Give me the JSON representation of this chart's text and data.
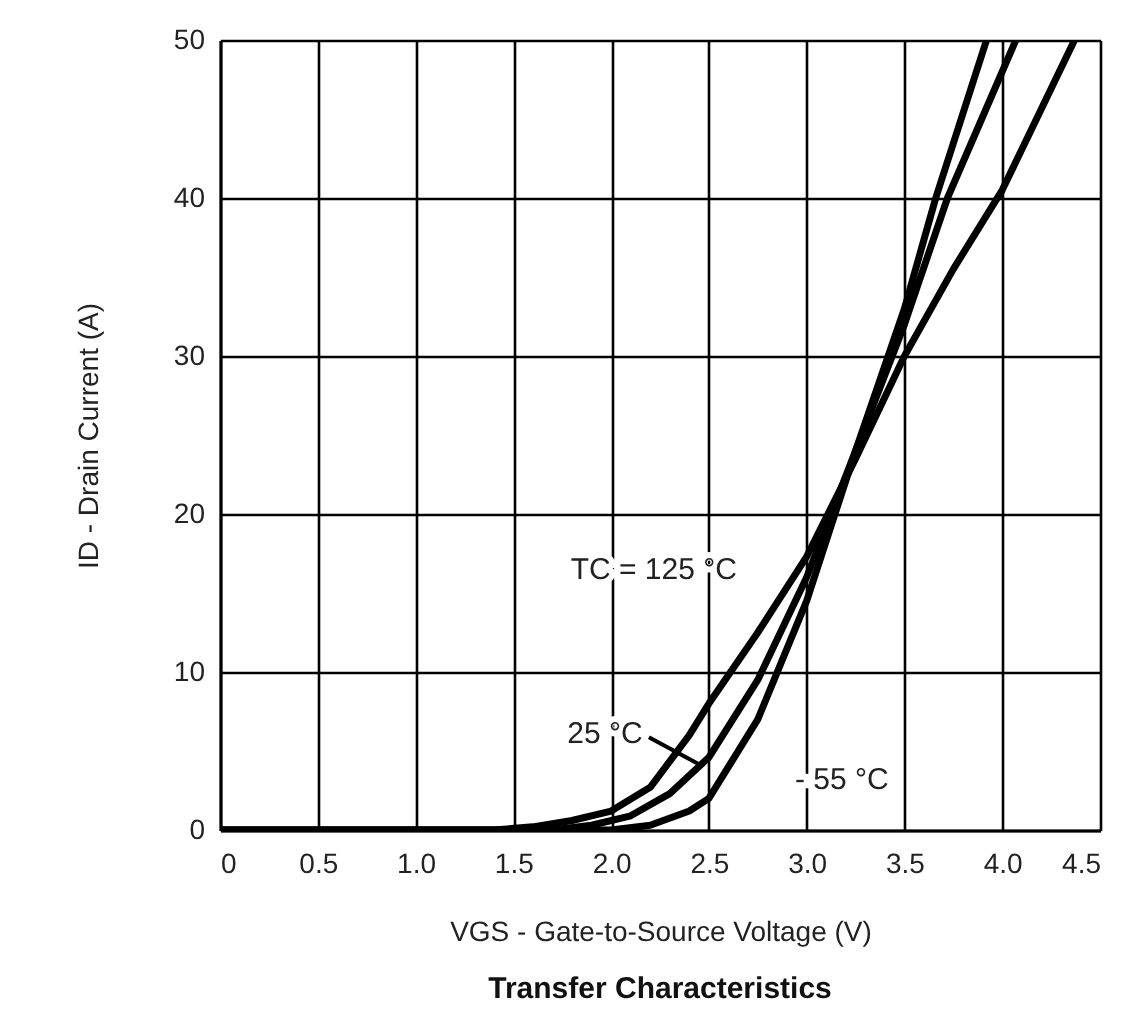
{
  "chart_data": {
    "type": "line",
    "title": "Transfer Characteristics",
    "xlabel": "VGS - Gate-to-Source Voltage (V)",
    "ylabel": "ID - Drain Current (A)",
    "xlim": [
      0,
      4.5
    ],
    "ylim": [
      0,
      50
    ],
    "xticks": [
      0,
      0.5,
      {
        "value": 1,
        "label": "1.0"
      },
      1.5,
      {
        "value": 2,
        "label": "2.0"
      },
      2.5,
      {
        "value": 3,
        "label": "3.0"
      },
      3.5,
      {
        "value": 4,
        "label": "4.0"
      },
      4.5
    ],
    "yticks": [
      0,
      10,
      20,
      30,
      40,
      50
    ],
    "grid": true,
    "line_style": "solid",
    "marker": "none",
    "series": [
      {
        "name": "TC = 125 °C",
        "color": "#000000",
        "x": [
          0,
          1.4,
          1.6,
          1.8,
          2.0,
          2.2,
          2.4,
          2.5,
          2.75,
          3.0,
          3.25,
          3.5,
          3.75,
          4.0,
          4.37
        ],
        "values": [
          0,
          0,
          0.2,
          0.6,
          1.2,
          2.7,
          6,
          8,
          12.5,
          17.3,
          23.5,
          30,
          35.5,
          40.5,
          50
        ]
      },
      {
        "name": "25 °C",
        "color": "#000000",
        "x": [
          0,
          1.7,
          1.9,
          2.1,
          2.3,
          2.5,
          2.75,
          3.0,
          3.25,
          3.5,
          3.72,
          4.07
        ],
        "values": [
          0,
          0,
          0.3,
          0.9,
          2.3,
          4.6,
          9.5,
          16,
          24,
          32,
          40,
          50
        ]
      },
      {
        "name": "- 55 °C",
        "color": "#000000",
        "x": [
          0,
          2.0,
          2.2,
          2.4,
          2.5,
          2.75,
          3.0,
          3.25,
          3.5,
          3.66,
          3.92
        ],
        "values": [
          0,
          0,
          0.3,
          1.2,
          2,
          7,
          14.5,
          24,
          33,
          40,
          50
        ]
      }
    ]
  }
}
